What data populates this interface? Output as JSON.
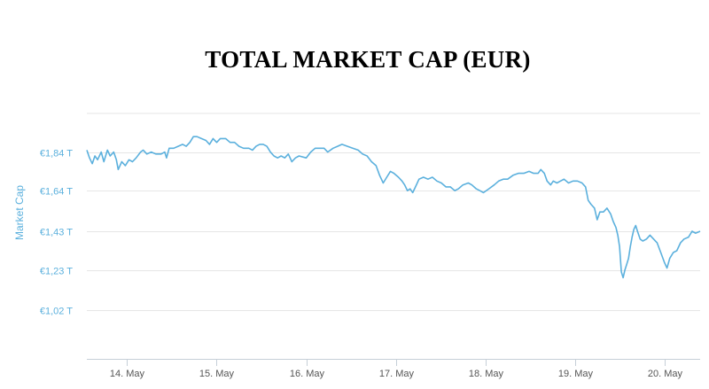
{
  "chart_data": {
    "type": "line",
    "title": "TOTAL MARKET CAP (EUR)",
    "xlabel": "",
    "ylabel": "Market Cap",
    "y_ticks": [
      {
        "value": 1.84,
        "label": "€1,84 T"
      },
      {
        "value": 1.64,
        "label": "€1,64 T"
      },
      {
        "value": 1.43,
        "label": "€1,43 T"
      },
      {
        "value": 1.23,
        "label": "€1,23 T"
      },
      {
        "value": 1.02,
        "label": "€1,02 T"
      }
    ],
    "x_ticks": [
      {
        "value": 14,
        "label": "14. May"
      },
      {
        "value": 15,
        "label": "15. May"
      },
      {
        "value": 16,
        "label": "16. May"
      },
      {
        "value": 17,
        "label": "17. May"
      },
      {
        "value": 18,
        "label": "18. May"
      },
      {
        "value": 19,
        "label": "19. May"
      },
      {
        "value": 20,
        "label": "20. May"
      }
    ],
    "xlim": [
      13.55,
      20.4
    ],
    "ylim": [
      0.77,
      2.04
    ],
    "grid": true,
    "color": "#5bb0dd",
    "series": [
      {
        "name": "",
        "points": [
          [
            13.55,
            1.85
          ],
          [
            13.58,
            1.81
          ],
          [
            13.61,
            1.78
          ],
          [
            13.64,
            1.82
          ],
          [
            13.67,
            1.8
          ],
          [
            13.71,
            1.84
          ],
          [
            13.74,
            1.79
          ],
          [
            13.78,
            1.85
          ],
          [
            13.81,
            1.82
          ],
          [
            13.85,
            1.84
          ],
          [
            13.88,
            1.8
          ],
          [
            13.9,
            1.75
          ],
          [
            13.94,
            1.79
          ],
          [
            13.98,
            1.77
          ],
          [
            14.02,
            1.8
          ],
          [
            14.06,
            1.79
          ],
          [
            14.1,
            1.81
          ],
          [
            14.15,
            1.84
          ],
          [
            14.18,
            1.85
          ],
          [
            14.22,
            1.83
          ],
          [
            14.27,
            1.84
          ],
          [
            14.32,
            1.83
          ],
          [
            14.38,
            1.83
          ],
          [
            14.42,
            1.84
          ],
          [
            14.44,
            1.81
          ],
          [
            14.47,
            1.86
          ],
          [
            14.52,
            1.86
          ],
          [
            14.57,
            1.87
          ],
          [
            14.62,
            1.88
          ],
          [
            14.66,
            1.87
          ],
          [
            14.7,
            1.89
          ],
          [
            14.74,
            1.92
          ],
          [
            14.78,
            1.92
          ],
          [
            14.83,
            1.91
          ],
          [
            14.88,
            1.9
          ],
          [
            14.92,
            1.88
          ],
          [
            14.96,
            1.91
          ],
          [
            15.0,
            1.89
          ],
          [
            15.04,
            1.91
          ],
          [
            15.1,
            1.91
          ],
          [
            15.15,
            1.89
          ],
          [
            15.2,
            1.89
          ],
          [
            15.25,
            1.87
          ],
          [
            15.3,
            1.86
          ],
          [
            15.36,
            1.86
          ],
          [
            15.4,
            1.85
          ],
          [
            15.44,
            1.87
          ],
          [
            15.48,
            1.88
          ],
          [
            15.52,
            1.88
          ],
          [
            15.56,
            1.87
          ],
          [
            15.6,
            1.84
          ],
          [
            15.64,
            1.82
          ],
          [
            15.68,
            1.81
          ],
          [
            15.72,
            1.82
          ],
          [
            15.76,
            1.81
          ],
          [
            15.8,
            1.83
          ],
          [
            15.84,
            1.79
          ],
          [
            15.88,
            1.81
          ],
          [
            15.92,
            1.82
          ],
          [
            16.0,
            1.81
          ],
          [
            16.05,
            1.84
          ],
          [
            16.1,
            1.86
          ],
          [
            16.15,
            1.86
          ],
          [
            16.2,
            1.86
          ],
          [
            16.24,
            1.84
          ],
          [
            16.3,
            1.86
          ],
          [
            16.35,
            1.87
          ],
          [
            16.4,
            1.88
          ],
          [
            16.46,
            1.87
          ],
          [
            16.52,
            1.86
          ],
          [
            16.58,
            1.85
          ],
          [
            16.63,
            1.83
          ],
          [
            16.68,
            1.82
          ],
          [
            16.73,
            1.79
          ],
          [
            16.78,
            1.77
          ],
          [
            16.82,
            1.72
          ],
          [
            16.86,
            1.68
          ],
          [
            16.9,
            1.71
          ],
          [
            16.94,
            1.74
          ],
          [
            16.98,
            1.73
          ],
          [
            17.03,
            1.71
          ],
          [
            17.07,
            1.69
          ],
          [
            17.1,
            1.67
          ],
          [
            17.13,
            1.64
          ],
          [
            17.16,
            1.65
          ],
          [
            17.19,
            1.63
          ],
          [
            17.22,
            1.66
          ],
          [
            17.26,
            1.7
          ],
          [
            17.31,
            1.71
          ],
          [
            17.36,
            1.7
          ],
          [
            17.41,
            1.71
          ],
          [
            17.46,
            1.69
          ],
          [
            17.51,
            1.68
          ],
          [
            17.56,
            1.66
          ],
          [
            17.61,
            1.66
          ],
          [
            17.66,
            1.64
          ],
          [
            17.7,
            1.65
          ],
          [
            17.75,
            1.67
          ],
          [
            17.81,
            1.68
          ],
          [
            17.85,
            1.67
          ],
          [
            17.9,
            1.65
          ],
          [
            17.94,
            1.64
          ],
          [
            17.98,
            1.63
          ],
          [
            18.04,
            1.65
          ],
          [
            18.1,
            1.67
          ],
          [
            18.15,
            1.69
          ],
          [
            18.2,
            1.7
          ],
          [
            18.25,
            1.7
          ],
          [
            18.31,
            1.72
          ],
          [
            18.37,
            1.73
          ],
          [
            18.43,
            1.73
          ],
          [
            18.49,
            1.74
          ],
          [
            18.54,
            1.73
          ],
          [
            18.59,
            1.73
          ],
          [
            18.62,
            1.75
          ],
          [
            18.66,
            1.73
          ],
          [
            18.69,
            1.69
          ],
          [
            18.73,
            1.67
          ],
          [
            18.76,
            1.69
          ],
          [
            18.8,
            1.68
          ],
          [
            18.84,
            1.69
          ],
          [
            18.88,
            1.7
          ],
          [
            18.93,
            1.68
          ],
          [
            18.98,
            1.69
          ],
          [
            19.03,
            1.69
          ],
          [
            19.08,
            1.68
          ],
          [
            19.12,
            1.66
          ],
          [
            19.15,
            1.59
          ],
          [
            19.18,
            1.57
          ],
          [
            19.22,
            1.55
          ],
          [
            19.25,
            1.49
          ],
          [
            19.28,
            1.53
          ],
          [
            19.32,
            1.53
          ],
          [
            19.36,
            1.55
          ],
          [
            19.4,
            1.52
          ],
          [
            19.43,
            1.48
          ],
          [
            19.46,
            1.45
          ],
          [
            19.48,
            1.41
          ],
          [
            19.5,
            1.35
          ],
          [
            19.52,
            1.22
          ],
          [
            19.54,
            1.19
          ],
          [
            19.56,
            1.23
          ],
          [
            19.58,
            1.26
          ],
          [
            19.6,
            1.29
          ],
          [
            19.62,
            1.35
          ],
          [
            19.64,
            1.4
          ],
          [
            19.66,
            1.44
          ],
          [
            19.68,
            1.46
          ],
          [
            19.7,
            1.43
          ],
          [
            19.73,
            1.39
          ],
          [
            19.76,
            1.38
          ],
          [
            19.8,
            1.39
          ],
          [
            19.84,
            1.41
          ],
          [
            19.88,
            1.39
          ],
          [
            19.92,
            1.37
          ],
          [
            19.96,
            1.32
          ],
          [
            20.0,
            1.27
          ],
          [
            20.03,
            1.24
          ],
          [
            20.06,
            1.29
          ],
          [
            20.1,
            1.32
          ],
          [
            20.14,
            1.33
          ],
          [
            20.18,
            1.37
          ],
          [
            20.22,
            1.39
          ],
          [
            20.27,
            1.4
          ],
          [
            20.31,
            1.43
          ],
          [
            20.35,
            1.42
          ],
          [
            20.4,
            1.43
          ]
        ]
      }
    ]
  }
}
